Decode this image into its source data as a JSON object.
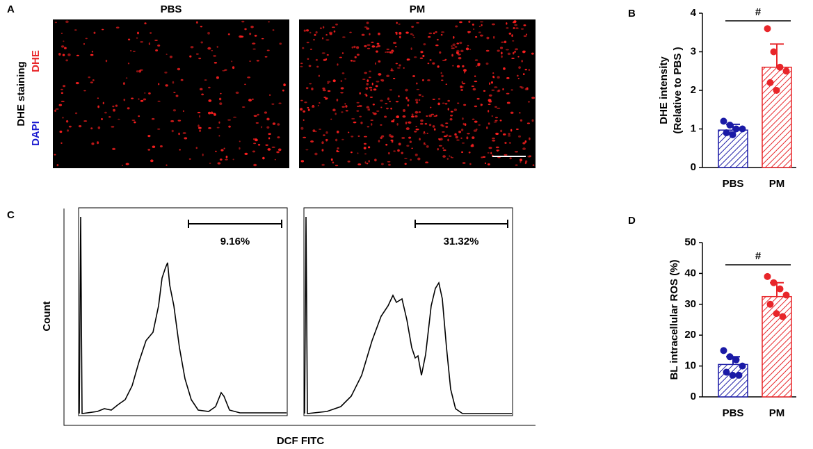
{
  "panel_a": {
    "label": "A",
    "titles": [
      "PBS",
      "PM"
    ],
    "stain_label": "DHE staining",
    "dapi": "DAPI",
    "dhe": "DHE"
  },
  "panel_c": {
    "label": "C",
    "y_label": "Count",
    "x_label": "DCF FITC",
    "gates": [
      "9.16%",
      "31.32%"
    ]
  },
  "chart_data": [
    {
      "type": "bar",
      "panel": "B",
      "categories": [
        "PBS",
        "PM"
      ],
      "values": [
        0.97,
        2.6
      ],
      "errors": [
        0.15,
        0.6
      ],
      "points": [
        [
          1.2,
          1.1,
          1.0,
          1.0,
          0.9,
          0.85
        ],
        [
          3.6,
          3.0,
          2.6,
          2.5,
          2.2,
          2.0
        ]
      ],
      "colors": [
        "#1a1aa6",
        "#e8262a"
      ],
      "ylim": [
        0,
        4
      ],
      "yticks": [
        0,
        1,
        2,
        3,
        4
      ],
      "y_label": [
        "DHE intensity",
        "(Relative to PBS )"
      ],
      "annotation": "#"
    },
    {
      "type": "bar",
      "panel": "D",
      "categories": [
        "PBS",
        "PM"
      ],
      "values": [
        10.5,
        32.5
      ],
      "errors": [
        2.5,
        4.5
      ],
      "points": [
        [
          15,
          13,
          12,
          10,
          8,
          7,
          7
        ],
        [
          39,
          37,
          35,
          33,
          30,
          27,
          26
        ]
      ],
      "colors": [
        "#1a1aa6",
        "#e8262a"
      ],
      "ylim": [
        0,
        50
      ],
      "yticks": [
        0,
        10,
        20,
        30,
        40,
        50
      ],
      "y_label": [
        "BL intracellular ROS (%)"
      ],
      "annotation": "#"
    }
  ]
}
